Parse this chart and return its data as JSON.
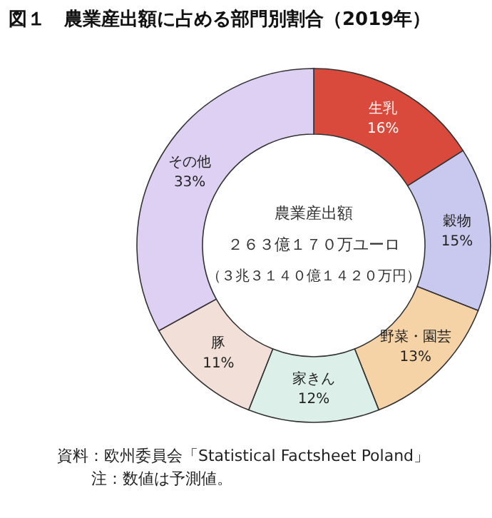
{
  "chart_data": {
    "type": "donut",
    "title": "図１　農業産出額に占める部門別割合（2019年）",
    "categories": [
      "生乳",
      "穀物",
      "野菜・園芸",
      "家きん",
      "豚",
      "その他"
    ],
    "values": [
      16,
      15,
      13,
      12,
      11,
      33
    ],
    "value_labels": [
      "16%",
      "15%",
      "13%",
      "12%",
      "11%",
      "33%"
    ],
    "colors": [
      "#d94a3c",
      "#c9c9f0",
      "#f5d3a6",
      "#dcefe8",
      "#f2e0d8",
      "#ddd0f2"
    ],
    "annotations": [
      "農業産出額",
      "２６３億１７０万ユーロ",
      "（３兆３１４０億１４２０万円）",
      "資料：欧州委員会「Statistical Factsheet Poland」",
      "注：数値は予測値。"
    ],
    "legend": false
  }
}
